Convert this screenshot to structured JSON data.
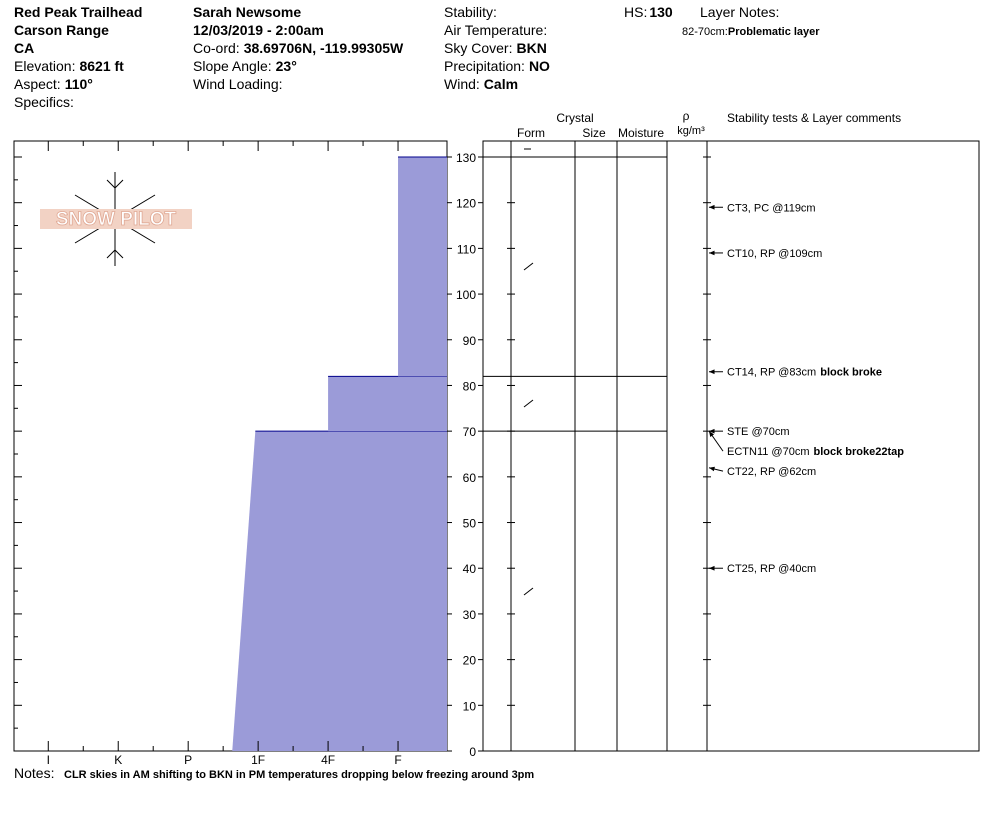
{
  "header": {
    "col1": [
      "Red Peak Trailhead",
      "Carson Range",
      "CA"
    ],
    "col1_fields": [
      {
        "label": "Elevation:",
        "value": "8621 ft"
      },
      {
        "label": "Aspect:",
        "value": "110°"
      },
      {
        "label": "Specifics:"
      }
    ],
    "col2": [
      "Sarah Newsome",
      "12/03/2019 - 2:00am"
    ],
    "col2_fields": [
      {
        "label": "Co-ord:",
        "value": "38.69706N, -119.99305W"
      },
      {
        "label": "Slope Angle:",
        "value": "23°"
      },
      {
        "label": "Wind Loading:"
      }
    ],
    "col3_fields": [
      {
        "label": "Stability:"
      },
      {
        "label": "Air Temperature:"
      },
      {
        "label": "Sky Cover:",
        "value": "BKN"
      },
      {
        "label": "Precipitation:",
        "value": "NO"
      },
      {
        "label": "Wind:",
        "value": "Calm"
      }
    ],
    "hs": {
      "label": "HS:",
      "value": 130
    },
    "layer_notes": {
      "title": "Layer Notes:",
      "items": [
        {
          "range": "82-70cm:",
          "text": "Problematic layer"
        }
      ]
    }
  },
  "columns": {
    "crystal": "Crystal",
    "form": "Form",
    "size": "Size",
    "moisture": "Moisture",
    "rho": "ρ",
    "density_unit": "kg/m³",
    "comments": "Stability tests & Layer comments"
  },
  "watermark": "SNOW PILOT",
  "chart_data": {
    "type": "hardness-profile",
    "layers": {
      "bottom": [
        0,
        70,
        82
      ],
      "top": [
        70,
        82,
        130
      ],
      "hardness_bottom": [
        3.37,
        2,
        1
      ],
      "hardness_top": [
        3.04,
        2,
        1
      ],
      "color": "#9b9bd8",
      "edge_color": "#00008b"
    },
    "xlim": [
      6.49,
      0.3
    ],
    "xticks": [
      {
        "value": 6,
        "label": "I"
      },
      {
        "value": 5,
        "label": "K"
      },
      {
        "value": 4,
        "label": "P"
      },
      {
        "value": 3,
        "label": "1F"
      },
      {
        "value": 2,
        "label": "4F"
      },
      {
        "value": 1,
        "label": "F"
      }
    ],
    "ylim": [
      0,
      133.5
    ],
    "yticks": [
      0,
      10,
      20,
      30,
      40,
      50,
      60,
      70,
      80,
      90,
      100,
      110,
      120,
      130
    ],
    "tests": [
      {
        "depth": 119,
        "text": "CT3, PC @119cm"
      },
      {
        "depth": 109,
        "text": "CT10, RP @109cm"
      },
      {
        "depth": 83,
        "text": "CT14, RP @83cm",
        "note": "block broke"
      },
      {
        "depth": 70,
        "text": "STE @70cm"
      },
      {
        "depth": 70,
        "text": "ECTN11 @70cm",
        "note": "block broke22tap"
      },
      {
        "depth": 62,
        "text": "CT22, RP @62cm"
      },
      {
        "depth": 40,
        "text": "CT25, RP @40cm"
      }
    ]
  },
  "notes": {
    "label": "Notes:",
    "text": "CLR skies in AM shifting to BKN in PM temperatures dropping below freezing around 3pm"
  }
}
